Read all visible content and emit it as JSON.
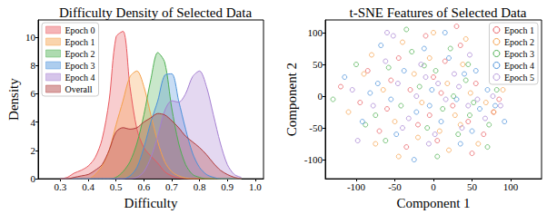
{
  "chart_data": [
    {
      "type": "area",
      "title": "Difficulty Density of Selected Data",
      "x_label": "Difficulty",
      "y_label": "Density",
      "x": [
        0.3,
        0.325,
        0.35,
        0.375,
        0.4,
        0.425,
        0.45,
        0.475,
        0.5,
        0.525,
        0.55,
        0.575,
        0.6,
        0.625,
        0.65,
        0.675,
        0.7,
        0.725,
        0.75,
        0.775,
        0.8,
        0.825,
        0.85,
        0.875,
        0.9,
        0.925,
        0.95
      ],
      "series": [
        {
          "name": "Epoch 0",
          "color": "#e8595f",
          "values": [
            0,
            0.1,
            0.4,
            0.6,
            0.9,
            1.5,
            2.8,
            5.5,
            10.0,
            10.4,
            6.5,
            3.5,
            2.2,
            1.6,
            1.1,
            0.5,
            0.2,
            0.05,
            0,
            0,
            0,
            0,
            0,
            0,
            0,
            0,
            0
          ]
        },
        {
          "name": "Epoch 1",
          "color": "#f5a04a",
          "values": [
            0,
            0,
            0,
            0,
            0,
            0.3,
            0.9,
            2.0,
            3.8,
            5.5,
            7.2,
            7.6,
            6.5,
            4.5,
            2.6,
            1.2,
            0.5,
            0.2,
            0.05,
            0,
            0,
            0,
            0,
            0,
            0,
            0,
            0
          ]
        },
        {
          "name": "Epoch 2",
          "color": "#4caf50",
          "values": [
            0,
            0,
            0,
            0,
            0,
            0,
            0,
            0,
            0.1,
            0.5,
            1.2,
            2.5,
            4.5,
            7.0,
            8.9,
            8.2,
            5.0,
            2.5,
            1.0,
            0.3,
            0.1,
            0,
            0,
            0,
            0,
            0,
            0
          ]
        },
        {
          "name": "Epoch 3",
          "color": "#4a90d9",
          "values": [
            0,
            0,
            0,
            0,
            0,
            0,
            0,
            0,
            0,
            0,
            0.2,
            0.8,
            2.2,
            4.0,
            5.5,
            7.3,
            7.4,
            5.5,
            3.5,
            1.8,
            0.8,
            0.3,
            0.1,
            0,
            0,
            0,
            0
          ]
        },
        {
          "name": "Epoch 4",
          "color": "#a47fd1",
          "values": [
            0,
            0,
            0,
            0,
            0,
            0,
            0,
            0,
            0,
            0,
            0,
            0.1,
            0.5,
            1.5,
            3.0,
            4.8,
            5.5,
            5.4,
            6.0,
            7.2,
            7.6,
            6.5,
            4.5,
            2.5,
            1.0,
            0.3,
            0.1
          ]
        },
        {
          "name": "Overall",
          "color": "#b03a3a",
          "values": [
            0,
            0,
            0.1,
            0.2,
            0.3,
            0.6,
            1.0,
            2.0,
            3.3,
            3.6,
            3.5,
            3.6,
            4.0,
            4.3,
            4.6,
            4.5,
            4.1,
            3.6,
            3.0,
            2.6,
            2.2,
            1.7,
            1.1,
            0.6,
            0.3,
            0.1,
            0
          ]
        }
      ],
      "xlim": [
        0.22,
        1.03
      ],
      "ylim": [
        0,
        11.2
      ],
      "xticks": [
        0.3,
        0.4,
        0.5,
        0.6,
        0.7,
        0.8,
        0.9,
        {
          "value": 1,
          "label": "1.0"
        }
      ],
      "yticks": [
        0,
        2,
        4,
        6,
        8,
        10
      ],
      "legend": "upper left",
      "grid": false
    },
    {
      "type": "scatter",
      "title": "t-SNE Features of Selected Data",
      "x_label": "Component 1",
      "y_label": "Component 2",
      "marker": "hollow circle",
      "series": [
        {
          "name": "Epoch 1",
          "color": "#e8595f",
          "values": [
            [
              -120,
              15
            ],
            [
              -85,
              40
            ],
            [
              -60,
              -20
            ],
            [
              -45,
              60
            ],
            [
              -30,
              10
            ],
            [
              -20,
              -45
            ],
            [
              -10,
              95
            ],
            [
              0,
              30
            ],
            [
              5,
              -70
            ],
            [
              15,
              55
            ],
            [
              25,
              -15
            ],
            [
              35,
              80
            ],
            [
              45,
              -40
            ],
            [
              55,
              20
            ],
            [
              65,
              -60
            ],
            [
              78,
              -25
            ],
            [
              85,
              -5
            ],
            [
              -70,
              -55
            ],
            [
              -95,
              -10
            ],
            [
              10,
              5
            ],
            [
              -35,
              -80
            ],
            [
              30,
              110
            ],
            [
              -55,
              25
            ],
            [
              50,
              -90
            ],
            [
              -5,
              -30
            ]
          ]
        },
        {
          "name": "Epoch 2",
          "color": "#f5a04a",
          "values": [
            [
              -110,
              -25
            ],
            [
              -80,
              65
            ],
            [
              -65,
              10
            ],
            [
              -50,
              -40
            ],
            [
              -40,
              85
            ],
            [
              -25,
              35
            ],
            [
              -15,
              -10
            ],
            [
              -5,
              60
            ],
            [
              8,
              -55
            ],
            [
              18,
              20
            ],
            [
              28,
              -30
            ],
            [
              38,
              50
            ],
            [
              48,
              5
            ],
            [
              58,
              -75
            ],
            [
              68,
              -10
            ],
            [
              78,
              -25
            ],
            [
              90,
              10
            ],
            [
              -90,
              35
            ],
            [
              -45,
              -95
            ],
            [
              0,
              100
            ],
            [
              20,
              -85
            ],
            [
              -20,
              -65
            ],
            [
              42,
              90
            ],
            [
              -75,
              -75
            ],
            [
              35,
              -45
            ]
          ]
        },
        {
          "name": "Epoch 3",
          "color": "#4caf50",
          "values": [
            [
              -130,
              -5
            ],
            [
              -100,
              50
            ],
            [
              -75,
              -30
            ],
            [
              -58,
              45
            ],
            [
              -42,
              -15
            ],
            [
              -28,
              70
            ],
            [
              -18,
              15
            ],
            [
              -8,
              -50
            ],
            [
              3,
              40
            ],
            [
              12,
              -20
            ],
            [
              22,
              75
            ],
            [
              32,
              -60
            ],
            [
              42,
              25
            ],
            [
              52,
              -10
            ],
            [
              45,
              50
            ],
            [
              72,
              -45
            ],
            [
              82,
              10
            ],
            [
              -62,
              -70
            ],
            [
              -35,
              105
            ],
            [
              5,
              -95
            ],
            [
              -88,
              -45
            ],
            [
              26,
              0
            ],
            [
              -12,
              48
            ],
            [
              47,
              -30
            ],
            [
              70,
              -80
            ]
          ]
        },
        {
          "name": "Epoch 4",
          "color": "#4a90d9",
          "values": [
            [
              -115,
              30
            ],
            [
              -92,
              -40
            ],
            [
              -72,
              20
            ],
            [
              -55,
              -5
            ],
            [
              -38,
              40
            ],
            [
              -22,
              -25
            ],
            [
              -12,
              75
            ],
            [
              -2,
              10
            ],
            [
              10,
              -40
            ],
            [
              20,
              60
            ],
            [
              30,
              -5
            ],
            [
              40,
              35
            ],
            [
              50,
              -55
            ],
            [
              60,
              -20
            ],
            [
              70,
              10
            ],
            [
              80,
              -15
            ],
            [
              92,
              -40
            ],
            [
              -48,
              -60
            ],
            [
              -25,
              -100
            ],
            [
              15,
              100
            ],
            [
              -68,
              80
            ],
            [
              35,
              -75
            ],
            [
              -5,
              -15
            ],
            [
              55,
              40
            ],
            [
              -82,
              5
            ]
          ]
        },
        {
          "name": "Epoch 5",
          "color": "#a47fd1",
          "values": [
            [
              -105,
              10
            ],
            [
              -78,
              -15
            ],
            [
              -62,
              55
            ],
            [
              -46,
              20
            ],
            [
              -32,
              -35
            ],
            [
              -16,
              50
            ],
            [
              -6,
              -75
            ],
            [
              6,
              20
            ],
            [
              16,
              -5
            ],
            [
              27,
              35
            ],
            [
              37,
              -50
            ],
            [
              47,
              65
            ],
            [
              57,
              -5
            ],
            [
              67,
              -35
            ],
            [
              77,
              0
            ],
            [
              87,
              -15
            ],
            [
              -98,
              -70
            ],
            [
              -52,
              95
            ],
            [
              -22,
              0
            ],
            [
              2,
              -60
            ],
            [
              33,
              15
            ],
            [
              -40,
              -50
            ],
            [
              -60,
              100
            ],
            [
              45,
              -15
            ],
            [
              -10,
              30
            ]
          ]
        }
      ],
      "xlim": [
        -140,
        140
      ],
      "ylim": [
        -130,
        120
      ],
      "xticks": [
        -100,
        -50,
        0,
        50,
        100
      ],
      "yticks": [
        -100,
        -50,
        0,
        50,
        100
      ],
      "legend": "upper right",
      "grid": false
    }
  ]
}
